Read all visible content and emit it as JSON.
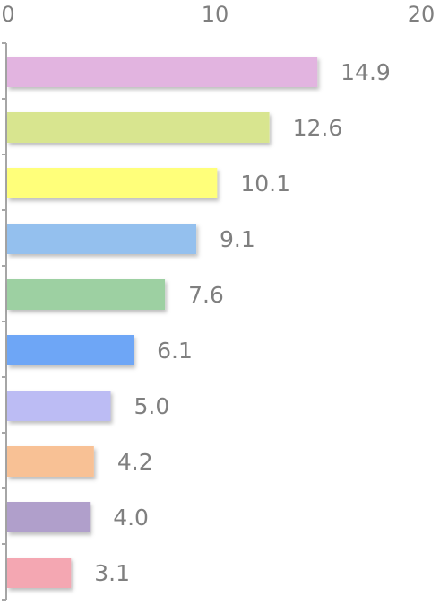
{
  "chart_data": {
    "type": "bar",
    "orientation": "horizontal",
    "x_axis_position": "top",
    "xlim": [
      0,
      20
    ],
    "x_ticks": [
      0,
      10,
      20
    ],
    "x_tick_labels": [
      "0",
      "10",
      "20"
    ],
    "grid": false,
    "legend": "none",
    "values": [
      14.9,
      12.6,
      10.1,
      9.1,
      7.6,
      6.1,
      5.0,
      4.2,
      4.0,
      3.1
    ],
    "value_labels": [
      "14.9",
      "12.6",
      "10.1",
      "9.1",
      "7.6",
      "6.1",
      "5.0",
      "4.2",
      "4.0",
      "3.1"
    ],
    "colors": [
      "#e2b4e0",
      "#d8e58f",
      "#ffff7a",
      "#94c0ee",
      "#9dd0a2",
      "#6ea6f6",
      "#bcbcf4",
      "#f8c195",
      "#b09fcb",
      "#f4a7b2"
    ]
  }
}
